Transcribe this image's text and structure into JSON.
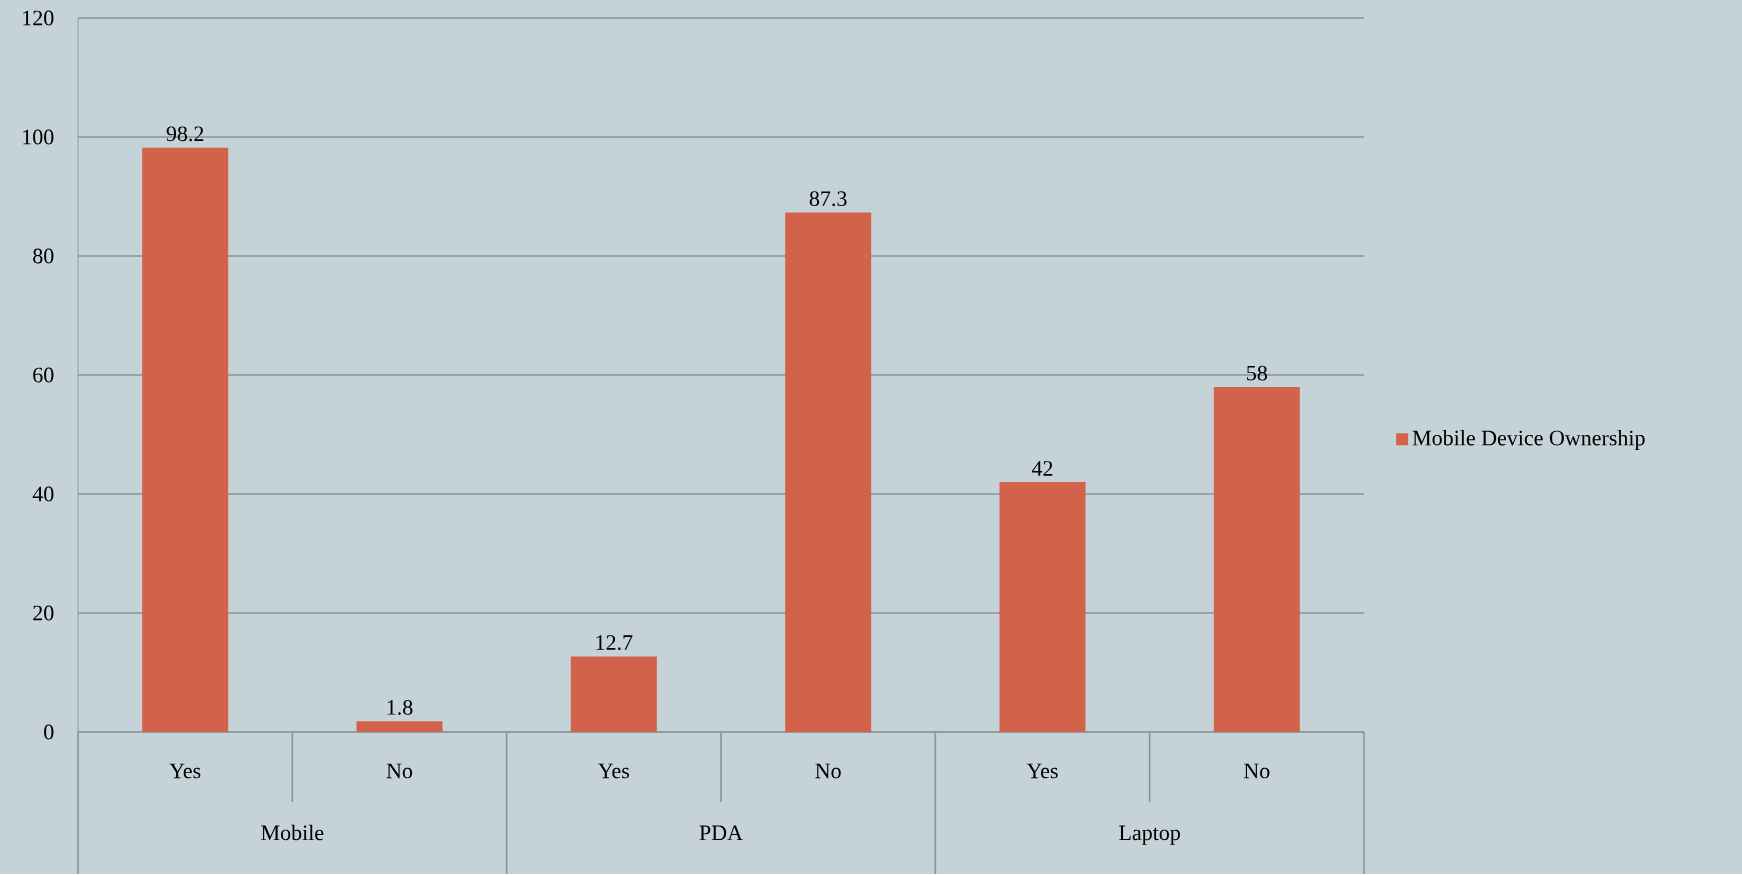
{
  "chart_data": {
    "type": "bar",
    "categories": [
      "Yes",
      "No",
      "Yes",
      "No",
      "Yes",
      "No"
    ],
    "series": [
      {
        "name": "Mobile Device Ownership",
        "color": "#d2634a",
        "values": [
          98.2,
          1.8,
          12.7,
          87.3,
          42,
          58
        ]
      }
    ],
    "annotations": [
      "Mobile",
      "PDA",
      "Laptop"
    ],
    "ylim": [
      0,
      120
    ],
    "yticks": [
      0,
      20,
      40,
      60,
      80,
      100,
      120
    ],
    "grid": "y",
    "legend": "right",
    "data_labels": true
  }
}
